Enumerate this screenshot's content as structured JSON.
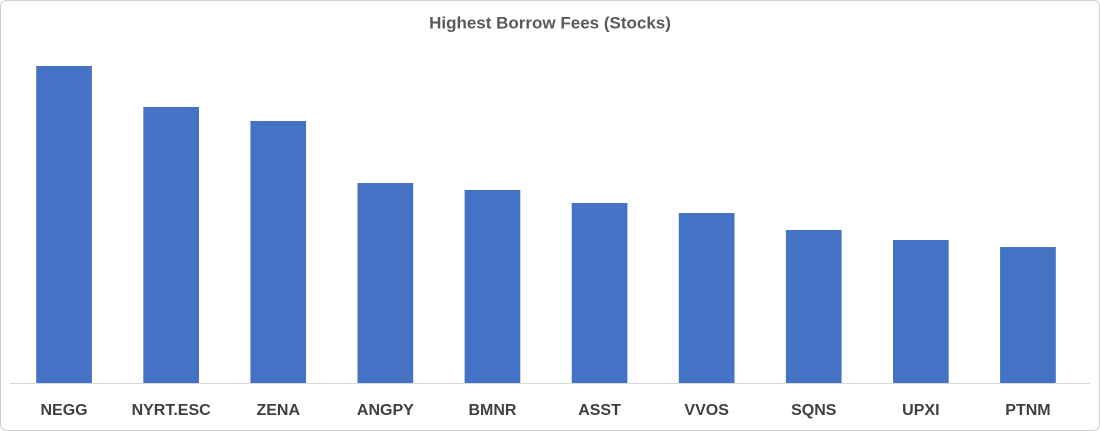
{
  "chart_data": {
    "type": "bar",
    "title": "Highest Borrow Fees (Stocks)",
    "categories": [
      "NEGG",
      "NYRT.ESC",
      "ZENA",
      "ANGPY",
      "BMNR",
      "ASST",
      "VVOS",
      "SQNS",
      "UPXI",
      "PTNM"
    ],
    "values": [
      317,
      276,
      262,
      200,
      193,
      180,
      170,
      153,
      143,
      136
    ],
    "color": "#4472c4",
    "ylim": [
      0,
      340
    ]
  }
}
